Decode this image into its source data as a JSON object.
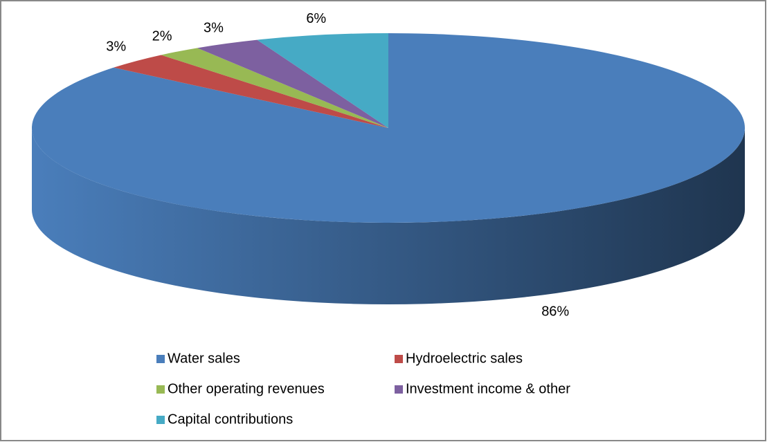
{
  "chart_data": {
    "type": "pie",
    "categories": [
      "Water sales",
      "Hydroelectric sales",
      "Other operating revenues",
      "Investment income & other",
      "Capital contributions"
    ],
    "values": [
      86,
      3,
      2,
      3,
      6
    ],
    "value_labels": [
      "86%",
      "3%",
      "2%",
      "3%",
      "6%"
    ],
    "colors": [
      "#4a7ebb",
      "#be4b48",
      "#98b954",
      "#7d60a0",
      "#46aac5"
    ],
    "three_d": true,
    "legend": "bottom"
  }
}
